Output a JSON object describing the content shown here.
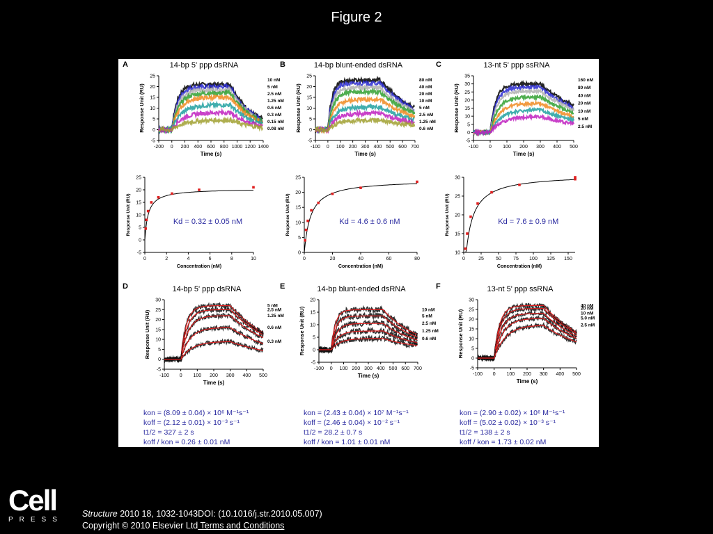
{
  "slide": {
    "title": "Figure 2"
  },
  "footer": {
    "logo_word": "Cell",
    "logo_press": "PRESS",
    "journal": "Structure",
    "citation": " 2010 18, 1032-1043DOI: (10.1016/j.str.2010.05.007)",
    "copyright": "Copyright © 2010 Elsevier Ltd",
    "terms_link": " Terms and Conditions"
  },
  "colors": {
    "background": "#000000",
    "panel": "#ffffff",
    "kinetics_text": "#2a2aa0",
    "fit_line": "#e02020",
    "sensorgram_palette": [
      "#000000",
      "#2a2ad0",
      "#b0b0b0",
      "#30a030",
      "#f08a20",
      "#20a0a0",
      "#c020c0",
      "#a0a030"
    ]
  },
  "chart_data": [
    {
      "panel": "A",
      "title": "14-bp 5' ppp dsRNA",
      "type": "line",
      "xlabel": "Time (s)",
      "ylabel": "Response Unit (RU)",
      "xlim": [
        -200,
        1400
      ],
      "ylim": [
        -5,
        25
      ],
      "xticks": [
        -200,
        0,
        200,
        400,
        600,
        800,
        1000,
        1200,
        1400
      ],
      "yticks": [
        -5,
        0,
        5,
        10,
        15,
        20,
        25
      ],
      "inject_start": 0,
      "inject_end": 900,
      "series": [
        {
          "name": "10 nM",
          "plateau": 21
        },
        {
          "name": "5 nM",
          "plateau": 20
        },
        {
          "name": "2.5 nM",
          "plateau": 18.5
        },
        {
          "name": "1.25 nM",
          "plateau": 17
        },
        {
          "name": "0.6 nM",
          "plateau": 15
        },
        {
          "name": "0.3 nM",
          "plateau": 11.5
        },
        {
          "name": "0.15 nM",
          "plateau": 8
        },
        {
          "name": "0.08 nM",
          "plateau": 4.5
        }
      ]
    },
    {
      "panel": "B",
      "title": "14-bp blunt-ended dsRNA",
      "type": "line",
      "xlabel": "Time (s)",
      "ylabel": "Response Unit (RU)",
      "xlim": [
        -100,
        700
      ],
      "ylim": [
        -5,
        25
      ],
      "xticks": [
        -100,
        0,
        100,
        200,
        300,
        400,
        500,
        600,
        700
      ],
      "yticks": [
        -5,
        0,
        5,
        10,
        15,
        20,
        25
      ],
      "inject_start": 0,
      "inject_end": 420,
      "series": [
        {
          "name": "80 nM",
          "plateau": 23
        },
        {
          "name": "40 nM",
          "plateau": 21.5
        },
        {
          "name": "20 nM",
          "plateau": 19.5
        },
        {
          "name": "10 nM",
          "plateau": 17.5
        },
        {
          "name": "5 nM",
          "plateau": 14
        },
        {
          "name": "2.5 nM",
          "plateau": 10.5
        },
        {
          "name": "1.25 nM",
          "plateau": 7.5
        },
        {
          "name": "0.6 nM",
          "plateau": 4.5
        }
      ]
    },
    {
      "panel": "C",
      "title": "13-nt 5' ppp ssRNA",
      "type": "line",
      "xlabel": "Time (s)",
      "ylabel": "Response Unit (RU)",
      "xlim": [
        -100,
        500
      ],
      "ylim": [
        -5,
        35
      ],
      "xticks": [
        -100,
        0,
        100,
        200,
        300,
        400,
        500
      ],
      "yticks": [
        -5,
        0,
        5,
        10,
        15,
        20,
        25,
        30,
        35
      ],
      "inject_start": 0,
      "inject_end": 300,
      "series": [
        {
          "name": "160 nM",
          "plateau": 30
        },
        {
          "name": "80 nM",
          "plateau": 28
        },
        {
          "name": "40 nM",
          "plateau": 25.5
        },
        {
          "name": "20 nM",
          "plateau": 22
        },
        {
          "name": "10 nM",
          "plateau": 18
        },
        {
          "name": "5 nM",
          "plateau": 14
        },
        {
          "name": "2.5 nM",
          "plateau": 10
        }
      ]
    },
    {
      "panel": "A-inset",
      "type": "scatter",
      "xlabel": "Concentration (nM)",
      "ylabel": "Response Unit (RU)",
      "xlim": [
        0,
        10
      ],
      "ylim": [
        -5,
        25
      ],
      "xticks": [
        0,
        2,
        4,
        6,
        8,
        10
      ],
      "yticks": [
        -5,
        0,
        5,
        10,
        15,
        20,
        25
      ],
      "x": [
        0.08,
        0.15,
        0.3,
        0.6,
        1.25,
        2.5,
        5,
        10
      ],
      "y": [
        4.5,
        8,
        11.5,
        15,
        17,
        18.5,
        20,
        21
      ],
      "fit": {
        "model": "one-site",
        "Rmax": 20.5,
        "Kd": 0.32
      },
      "annotation": "Kd = 0.32 ± 0.05 nM"
    },
    {
      "panel": "B-inset",
      "type": "scatter",
      "xlabel": "Concentration (nM)",
      "ylabel": "Response Unit (RU)",
      "xlim": [
        0,
        80
      ],
      "ylim": [
        0,
        25
      ],
      "xticks": [
        0,
        20,
        40,
        60,
        80
      ],
      "yticks": [
        0,
        5,
        10,
        15,
        20,
        25
      ],
      "x": [
        0.6,
        1.25,
        2.5,
        5,
        10,
        20,
        40,
        80
      ],
      "y": [
        4,
        7.5,
        10.5,
        14,
        16.5,
        19.5,
        21.5,
        23.5
      ],
      "fit": {
        "model": "one-site",
        "Rmax": 24.2,
        "Kd": 4.6
      },
      "annotation": "Kd = 4.6 ± 0.6 nM"
    },
    {
      "panel": "C-inset",
      "type": "scatter",
      "xlabel": "Concentration (nM)",
      "ylabel": "Response Unit (RU)",
      "xlim": [
        0,
        160
      ],
      "ylim": [
        10,
        30
      ],
      "xticks": [
        0,
        25,
        50,
        75,
        100,
        125,
        150
      ],
      "yticks": [
        10,
        15,
        20,
        25,
        30
      ],
      "x": [
        2.5,
        5,
        10,
        20,
        40,
        80,
        160,
        160
      ],
      "y": [
        11,
        15,
        19.5,
        23,
        26,
        28,
        29.5,
        30
      ],
      "fit": {
        "model": "one-site",
        "Rmax": 30.8,
        "Kd": 7.6
      },
      "annotation": "Kd = 7.6 ± 0.9 nM"
    },
    {
      "panel": "D",
      "title": "14-bp 5' ppp dsRNA",
      "type": "line",
      "xlabel": "Time (s)",
      "ylabel": "Response Unit (RU)",
      "xlim": [
        -100,
        500
      ],
      "ylim": [
        -5,
        30
      ],
      "xticks": [
        -100,
        0,
        100,
        200,
        300,
        400,
        500
      ],
      "yticks": [
        -5,
        0,
        5,
        10,
        15,
        20,
        25,
        30
      ],
      "inject_start": 0,
      "inject_end": 300,
      "series": [
        {
          "name": "5 nM",
          "plateau": 27
        },
        {
          "name": "2.5 nM",
          "plateau": 25
        },
        {
          "name": "1.25 nM",
          "plateau": 22
        },
        {
          "name": "0.6 nM",
          "plateau": 16
        },
        {
          "name": "0.3 nM",
          "plateau": 9
        }
      ],
      "kinetics": [
        "kon = (8.09 ± 0.04) × 10⁶ M⁻¹s⁻¹",
        "koff = (2.12 ± 0.01) × 10⁻³ s⁻¹",
        "t1/2 = 327 ± 2 s",
        "koff / kon = 0.26 ± 0.01 nM"
      ]
    },
    {
      "panel": "E",
      "title": "14-bp blunt-ended dsRNA",
      "type": "line",
      "xlabel": "Time (s)",
      "ylabel": "Response Unit (RU)",
      "xlim": [
        -100,
        700
      ],
      "ylim": [
        -5,
        20
      ],
      "xticks": [
        -100,
        0,
        100,
        200,
        300,
        400,
        500,
        600,
        700
      ],
      "yticks": [
        -5,
        0,
        5,
        10,
        15,
        20
      ],
      "inject_start": 0,
      "inject_end": 420,
      "series": [
        {
          "name": "10 nM",
          "plateau": 16
        },
        {
          "name": "5 nM",
          "plateau": 13.5
        },
        {
          "name": "2.5 nM",
          "plateau": 10.5
        },
        {
          "name": "1.25 nM",
          "plateau": 7.5
        },
        {
          "name": "0.6 nM",
          "plateau": 4.5
        }
      ],
      "kinetics": [
        "kon = (2.43 ± 0.04) × 10⁷ M⁻¹s⁻¹",
        "koff = (2.46 ± 0.04) × 10⁻² s⁻¹",
        "t1/2 = 28.2 ± 0.7 s",
        "koff / kon = 1.01 ± 0.01 nM"
      ]
    },
    {
      "panel": "F",
      "title": "13-nt 5' ppp ssRNA",
      "type": "line",
      "xlabel": "Time (s)",
      "ylabel": "Response Unit (RU)",
      "xlim": [
        -100,
        500
      ],
      "ylim": [
        -5,
        30
      ],
      "xticks": [
        -100,
        0,
        100,
        200,
        300,
        400,
        500
      ],
      "yticks": [
        -5,
        0,
        5,
        10,
        15,
        20,
        25,
        30
      ],
      "inject_start": 0,
      "inject_end": 300,
      "series": [
        {
          "name": "40 nM",
          "plateau": 27
        },
        {
          "name": "20 nM",
          "plateau": 25.5
        },
        {
          "name": "10 nM",
          "plateau": 23
        },
        {
          "name": "5.0 nM",
          "plateau": 20.5
        },
        {
          "name": "2.5 nM",
          "plateau": 17
        }
      ],
      "kinetics": [
        "kon = (2.90 ± 0.02) × 10⁶ M⁻¹s⁻¹",
        "koff = (5.02 ± 0.02) × 10⁻³ s⁻¹",
        "t1/2 = 138 ± 2 s",
        "koff / kon = 1.73 ± 0.02 nM"
      ]
    }
  ]
}
